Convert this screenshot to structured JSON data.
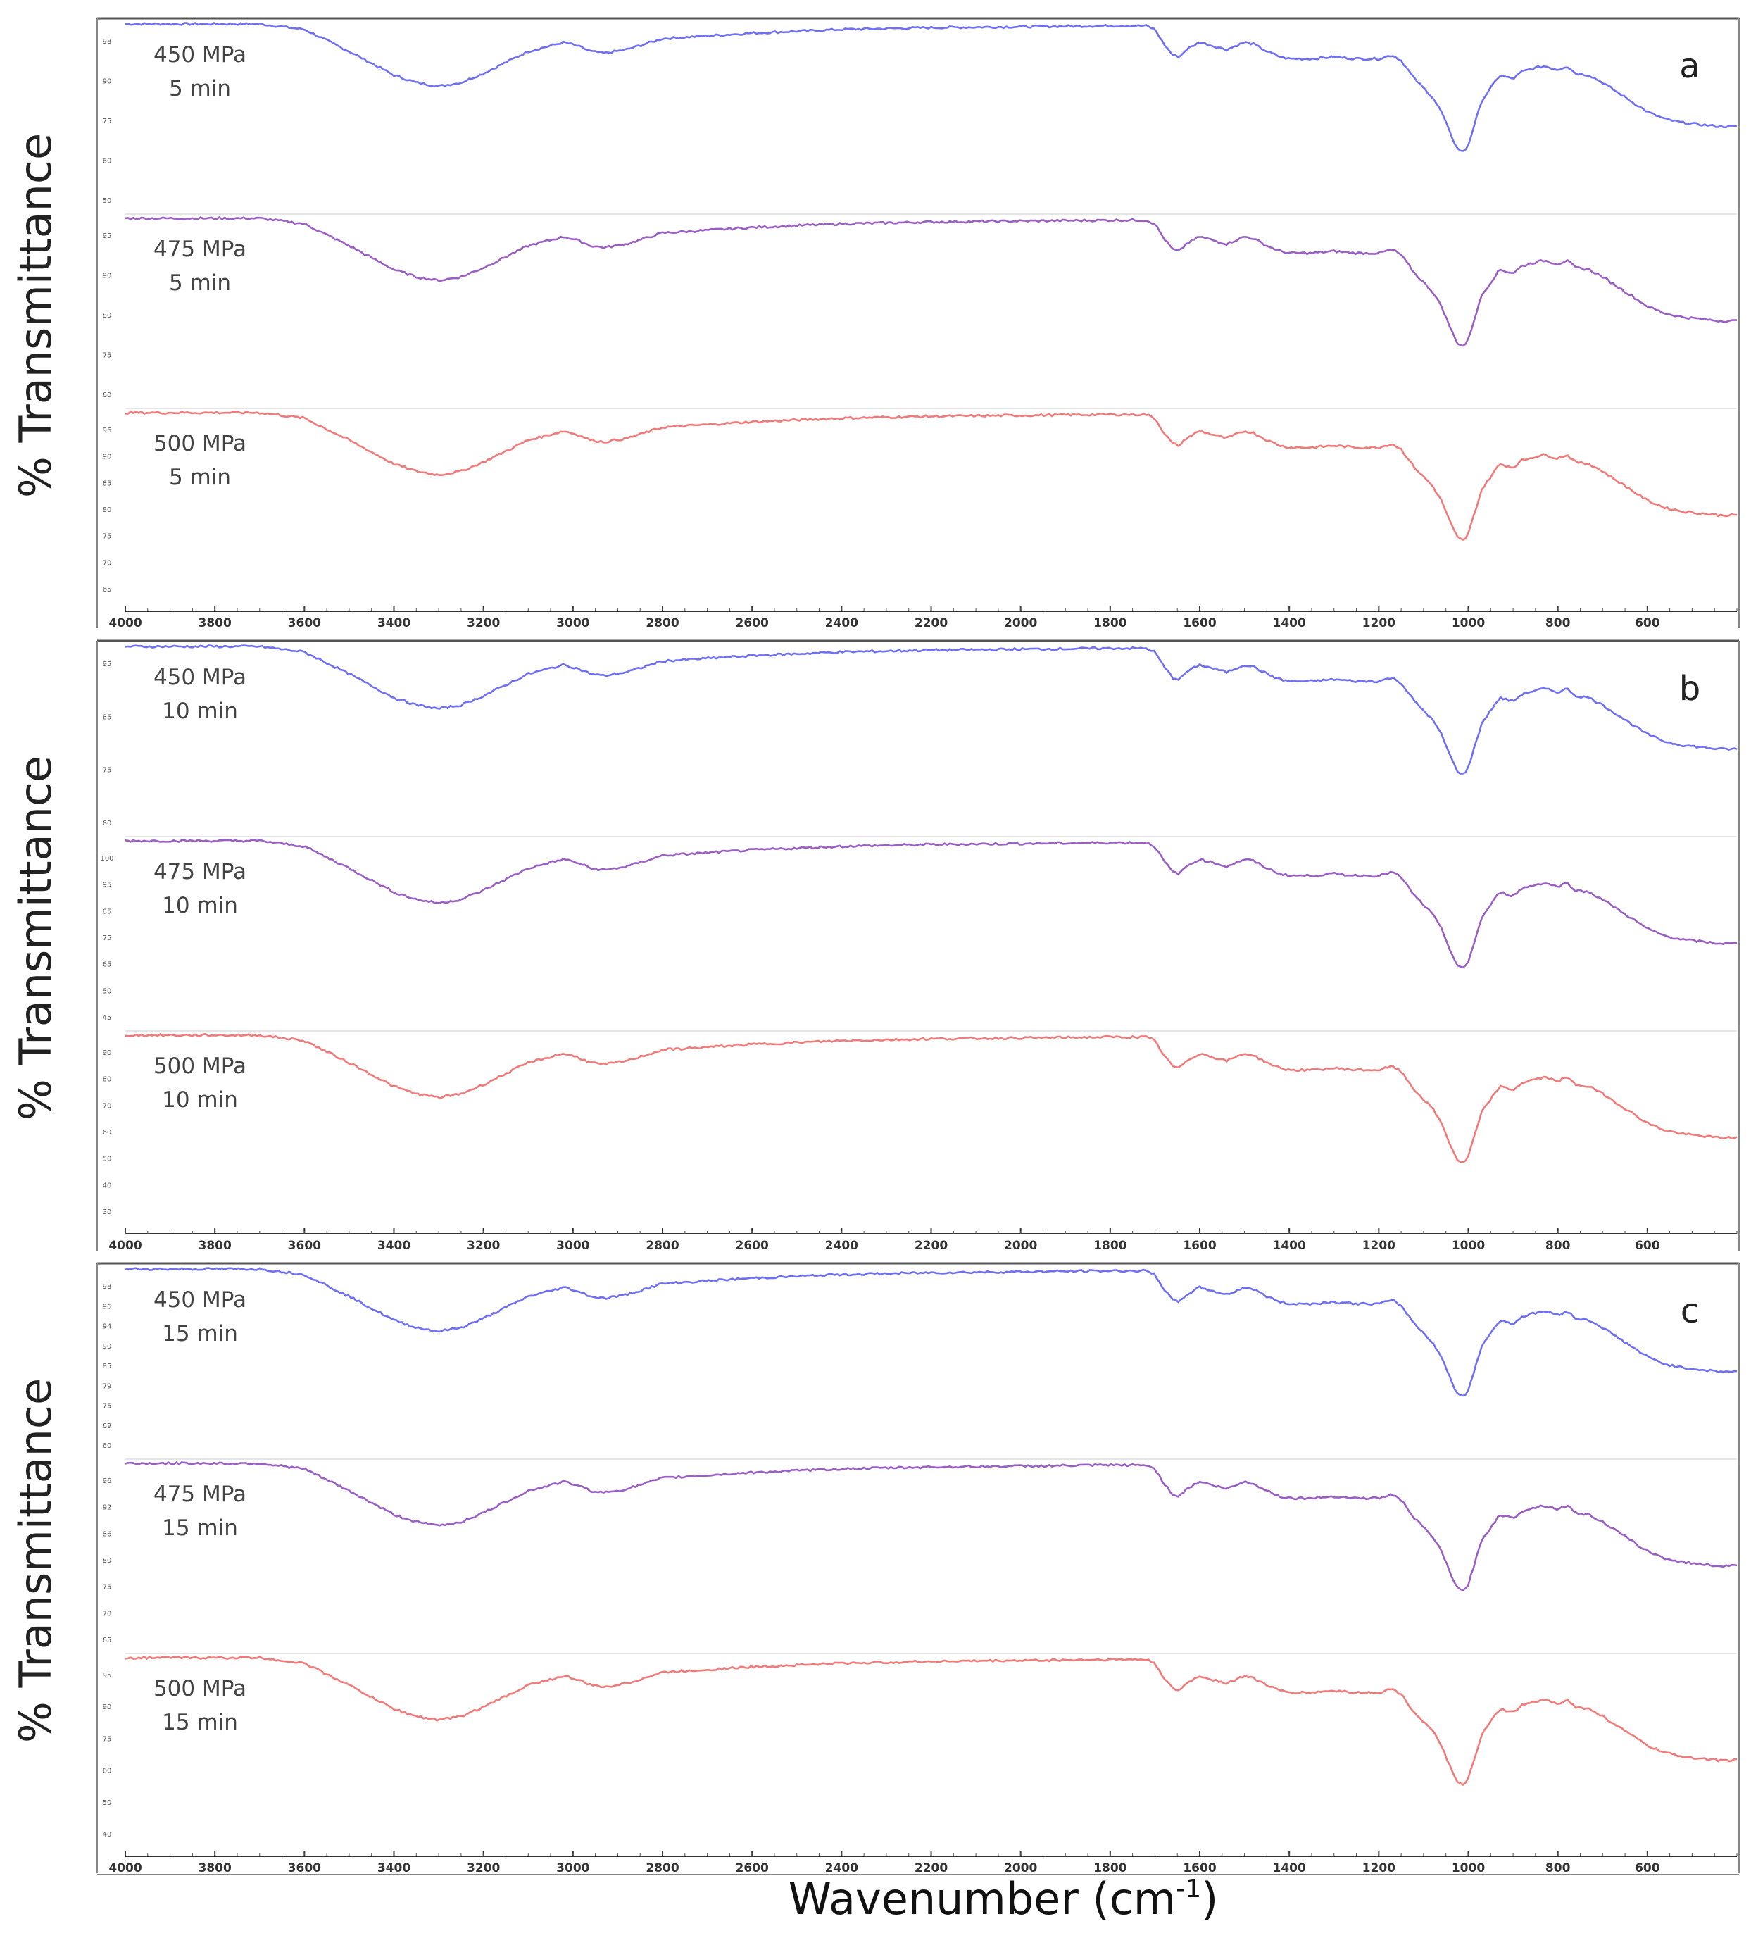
{
  "figure": {
    "y_axis_label": "% Transmittance",
    "x_axis_label": "Wavenumber (cm",
    "x_axis_label_sup": "-1",
    "x_axis_label_close": ")",
    "colors": {
      "450 MPa": "#6f6ff5",
      "475 MPa": "#9a5fc4",
      "500 MPa": "#f07a7a"
    }
  },
  "chart_data": {
    "type": "line",
    "title": "",
    "xlabel": "Wavenumber (cm-1)",
    "ylabel": "% Transmittance",
    "xlim": [
      4000,
      400
    ],
    "x_ticks": [
      "4000",
      "3800",
      "3600",
      "3400",
      "3200",
      "3000",
      "2800",
      "2600",
      "2400",
      "2200",
      "2000",
      "1800",
      "1600",
      "1400",
      "1200",
      "1000",
      "800",
      "600"
    ],
    "baseline_spectrum": {
      "description": "shared spectral shape, relative transmittance 0 (strongest band) to 1 (baseline)",
      "x": [
        4000,
        3700,
        3600,
        3500,
        3400,
        3350,
        3300,
        3250,
        3200,
        3100,
        3020,
        2990,
        2960,
        2930,
        2880,
        2800,
        2600,
        2400,
        2200,
        2000,
        1800,
        1720,
        1700,
        1680,
        1660,
        1645,
        1630,
        1600,
        1570,
        1540,
        1520,
        1500,
        1480,
        1450,
        1420,
        1400,
        1380,
        1350,
        1300,
        1250,
        1200,
        1170,
        1150,
        1120,
        1100,
        1080,
        1060,
        1040,
        1025,
        1010,
        1000,
        990,
        970,
        950,
        930,
        900,
        880,
        850,
        830,
        800,
        780,
        760,
        730,
        700,
        650,
        600,
        560,
        520,
        480,
        440,
        400
      ],
      "y": [
        1.0,
        1.0,
        0.97,
        0.85,
        0.72,
        0.68,
        0.66,
        0.68,
        0.73,
        0.85,
        0.9,
        0.88,
        0.85,
        0.84,
        0.86,
        0.92,
        0.95,
        0.97,
        0.98,
        0.985,
        0.99,
        0.99,
        0.97,
        0.89,
        0.83,
        0.82,
        0.86,
        0.9,
        0.88,
        0.86,
        0.88,
        0.9,
        0.89,
        0.85,
        0.82,
        0.81,
        0.81,
        0.81,
        0.82,
        0.81,
        0.81,
        0.83,
        0.8,
        0.7,
        0.65,
        0.6,
        0.52,
        0.4,
        0.32,
        0.3,
        0.34,
        0.42,
        0.58,
        0.65,
        0.72,
        0.7,
        0.74,
        0.76,
        0.77,
        0.75,
        0.77,
        0.73,
        0.72,
        0.68,
        0.6,
        0.52,
        0.48,
        0.46,
        0.45,
        0.44,
        0.44
      ]
    },
    "panels": [
      {
        "letter": "a",
        "series": [
          {
            "name": "450 MPa",
            "time": "5 min",
            "y_ticks": [
              "98",
              "90",
              "75",
              "60",
              "50"
            ]
          },
          {
            "name": "475 MPa",
            "time": "5 min",
            "y_ticks": [
              "95",
              "90",
              "80",
              "75",
              "60"
            ]
          },
          {
            "name": "500 MPa",
            "time": "5 min",
            "y_ticks": [
              "96",
              "90",
              "85",
              "80",
              "75",
              "70",
              "65"
            ]
          }
        ]
      },
      {
        "letter": "b",
        "series": [
          {
            "name": "450 MPa",
            "time": "10 min",
            "y_ticks": [
              "95",
              "85",
              "75",
              "60"
            ]
          },
          {
            "name": "475 MPa",
            "time": "10 min",
            "y_ticks": [
              "100",
              "95",
              "85",
              "75",
              "65",
              "50",
              "45"
            ]
          },
          {
            "name": "500 MPa",
            "time": "10 min",
            "y_ticks": [
              "90",
              "80",
              "70",
              "60",
              "50",
              "40",
              "30"
            ]
          }
        ]
      },
      {
        "letter": "c",
        "series": [
          {
            "name": "450 MPa",
            "time": "15 min",
            "y_ticks": [
              "98",
              "96",
              "94",
              "90",
              "85",
              "79",
              "75",
              "69",
              "60"
            ]
          },
          {
            "name": "475 MPa",
            "time": "15 min",
            "y_ticks": [
              "96",
              "92",
              "86",
              "80",
              "75",
              "70",
              "65"
            ]
          },
          {
            "name": "500 MPa",
            "time": "15 min",
            "y_ticks": [
              "95",
              "90",
              "75",
              "60",
              "50",
              "40"
            ]
          }
        ]
      }
    ]
  }
}
